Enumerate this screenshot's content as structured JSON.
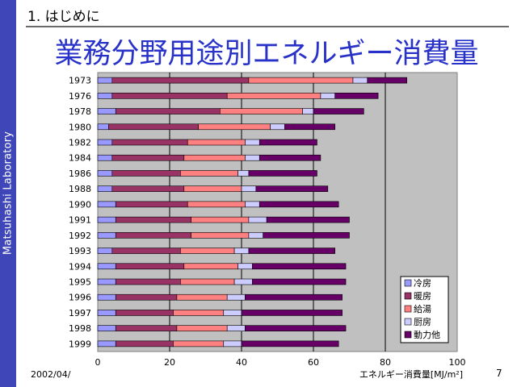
{
  "slide": {
    "sidebar_text": "Matsuhashi Laboratory",
    "section": "1. はじめに",
    "title": "業務分野用途別エネルギー消費量",
    "date": "2002/04/",
    "page_number": "7"
  },
  "colors": {
    "sidebar": "#3f47b8",
    "title": "#2832c8",
    "plot_bg": "#c0c0c0"
  },
  "chart_data": {
    "type": "bar",
    "orientation": "horizontal",
    "stacked": true,
    "categories": [
      "1973",
      "1976",
      "1978",
      "1980",
      "1982",
      "1984",
      "1986",
      "1988",
      "1990",
      "1991",
      "1992",
      "1993",
      "1994",
      "1995",
      "1996",
      "1997",
      "1998",
      "1999"
    ],
    "series": [
      {
        "name": "冷房",
        "color": "#9999ff",
        "values": [
          4,
          4,
          5,
          3,
          4,
          4,
          4,
          4,
          5,
          5,
          5,
          4,
          5,
          5,
          5,
          5,
          5,
          5
        ]
      },
      {
        "name": "暖房",
        "color": "#993366",
        "values": [
          38,
          32,
          29,
          25,
          21,
          20,
          19,
          20,
          20,
          21,
          21,
          19,
          19,
          18,
          17,
          16,
          17,
          16
        ]
      },
      {
        "name": "給湯",
        "color": "#ff8080",
        "values": [
          29,
          26,
          23,
          20,
          16,
          17,
          16,
          16,
          16,
          16,
          16,
          15,
          15,
          15,
          14,
          14,
          14,
          14
        ]
      },
      {
        "name": "厨房",
        "color": "#ccccff",
        "values": [
          4,
          4,
          3,
          4,
          4,
          4,
          3,
          4,
          4,
          5,
          4,
          4,
          4,
          5,
          5,
          5,
          5,
          5
        ]
      },
      {
        "name": "動力他",
        "color": "#660066",
        "values": [
          11,
          12,
          14,
          14,
          16,
          17,
          19,
          20,
          22,
          23,
          24,
          24,
          26,
          26,
          27,
          28,
          28,
          27
        ]
      }
    ],
    "xlim": [
      0,
      100
    ],
    "xticks": [
      0,
      20,
      40,
      60,
      80,
      100
    ],
    "xlabel": "エネルギー消費量[MJ/m²]",
    "grid": true,
    "legend_position": "bottom-right"
  }
}
